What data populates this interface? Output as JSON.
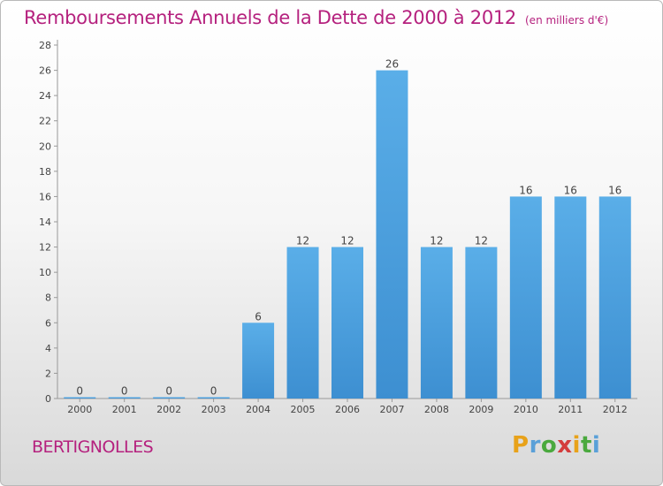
{
  "header": {
    "title": "Remboursements Annuels de la Dette de 2000 à 2012",
    "unit": "(en milliers d'€)"
  },
  "footer": {
    "commune": "BERTIGNOLLES",
    "logo_letters": [
      "P",
      "r",
      "o",
      "x",
      "i",
      "t",
      "i"
    ],
    "logo_colors": [
      "#e8a21a",
      "#5aa0d8",
      "#4aa93e",
      "#d43c3c",
      "#e8a21a",
      "#4aa93e",
      "#5aa0d8"
    ]
  },
  "chart_data": {
    "type": "bar",
    "title": "Remboursements Annuels de la Dette de 2000 à 2012",
    "subtitle": "(en milliers d'€)",
    "categories": [
      "2000",
      "2001",
      "2002",
      "2003",
      "2004",
      "2005",
      "2006",
      "2007",
      "2008",
      "2009",
      "2010",
      "2011",
      "2012"
    ],
    "values": [
      0,
      0,
      0,
      0,
      6,
      12,
      12,
      26,
      12,
      12,
      16,
      16,
      16
    ],
    "data_labels": [
      "0",
      "0",
      "0",
      "0",
      "6",
      "12",
      "12",
      "26",
      "12",
      "12",
      "16",
      "16",
      "16"
    ],
    "yticks": [
      0,
      2,
      4,
      6,
      8,
      10,
      12,
      14,
      16,
      18,
      20,
      22,
      24,
      26,
      28
    ],
    "ylim": [
      0,
      28
    ],
    "xlabel": "",
    "ylabel": "",
    "grid": false,
    "bar_color": "#3d8fd1",
    "bar_color_light": "#5aaee8"
  }
}
